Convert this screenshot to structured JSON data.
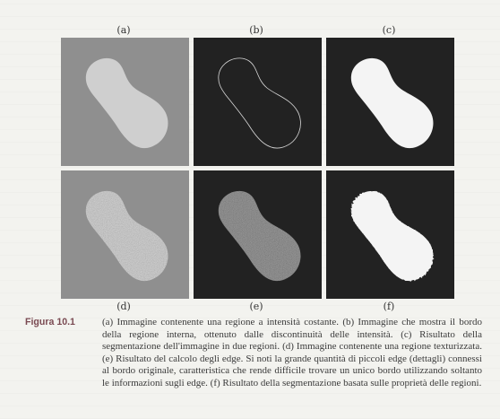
{
  "figure": {
    "panels": [
      {
        "id": "a",
        "label": "(a)"
      },
      {
        "id": "b",
        "label": "(b)"
      },
      {
        "id": "c",
        "label": "(c)"
      },
      {
        "id": "d",
        "label": "(d)"
      },
      {
        "id": "e",
        "label": "(e)"
      },
      {
        "id": "f",
        "label": "(f)"
      }
    ],
    "caption_label": "Figura 10.1",
    "caption_text": "(a) Immagine contenente una regione a intensità costante. (b) Immagine che mostra il bordo della regione interna, ottenuto dalle discontinuità delle intensità. (c) Risultato della segmentazione dell'immagine in due regioni. (d) Immagine contenente una regione texturizzata. (e) Risultato del calcolo degli edge. Si noti la grande quantità di piccoli edge (dettagli) connessi al bordo originale, caratteristica che rende difficile trovare un unico bordo utilizzando soltanto le informazioni sugli edge. (f) Risultato della segmentazione basata sulle proprietà delle regioni."
  },
  "colors": {
    "gray_background": "#8f8f8f",
    "light_region": "#cfcfcf",
    "dark_background": "#222222",
    "white_region": "#f4f4f4",
    "caption_label": "#7a4a52"
  }
}
